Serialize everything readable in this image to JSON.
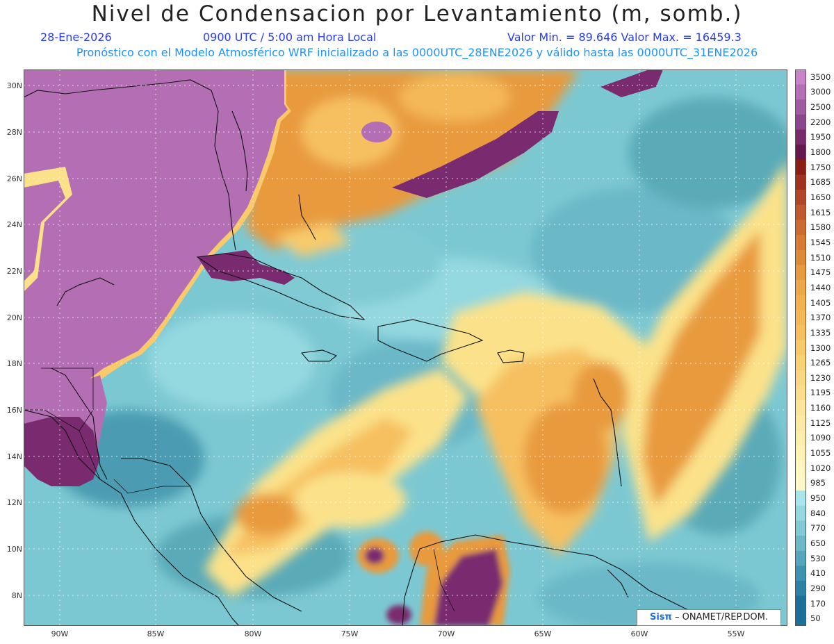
{
  "header": {
    "title": "Nivel de Condensacion por Levantamiento (m, somb.)",
    "date": "28-Ene-2026",
    "time": "0900 UTC / 5:00 am Hora Local",
    "minmax": "Valor Min. = 89.646  Valor Max. = 16459.3",
    "model_info": "Pronóstico con el Modelo Atmosférico WRF inicializado a las 0000UTC_28ENE2026 y válido hasta las  0000UTC_31ENE2026"
  },
  "lat_ticks": [
    "30N",
    "28N",
    "26N",
    "24N",
    "22N",
    "20N",
    "18N",
    "16N",
    "14N",
    "12N",
    "10N",
    "8N"
  ],
  "lon_ticks": [
    "90W",
    "85W",
    "80W",
    "75W",
    "70W",
    "65W",
    "60W",
    "55W"
  ],
  "colorbar": {
    "labels": [
      "3500",
      "3000",
      "2500",
      "2200",
      "1950",
      "1800",
      "1750",
      "1685",
      "1650",
      "1615",
      "1580",
      "1545",
      "1510",
      "1475",
      "1440",
      "1405",
      "1370",
      "1335",
      "1300",
      "1265",
      "1230",
      "1195",
      "1160",
      "1125",
      "1090",
      "1055",
      "1020",
      "985",
      "950",
      "840",
      "770",
      "650",
      "530",
      "410",
      "290",
      "170",
      "50"
    ],
    "colors": [
      "#c882c8",
      "#b46eb4",
      "#a05aa0",
      "#8c4690",
      "#782a6a",
      "#64184e",
      "#8c1e14",
      "#a0321e",
      "#b44628",
      "#c05a2c",
      "#cc6a30",
      "#d67a34",
      "#df8a38",
      "#e89a3e",
      "#ee a848",
      "#f2b04e",
      "#f4b856",
      "#f6c060",
      "#f8ca6c",
      "#f9d276",
      "#fad882",
      "#fbde8c",
      "#fce498",
      "#fdeaa2",
      "#fdeeaa",
      "#fef2b4",
      "#fef6be",
      "#fef8c8",
      "#a8e6ec",
      "#94d8e0",
      "#80cad4",
      "#6ab8c8",
      "#54a6bc",
      "#3e94b0",
      "#2a82a4",
      "#1a7098"
    ]
  },
  "map": {
    "colors": {
      "purple": "#b46eb4",
      "dark_purple": "#7a2a6e",
      "orange": "#e89a3e",
      "light_orange": "#f6c060",
      "yellow": "#fbe28a",
      "cyan": "#8ed2d8",
      "teal": "#5aaab8",
      "dark_teal": "#3a8aa2"
    }
  },
  "credit": {
    "logo": "Sisπ",
    "text": "– ONAMET/REP.DOM."
  }
}
